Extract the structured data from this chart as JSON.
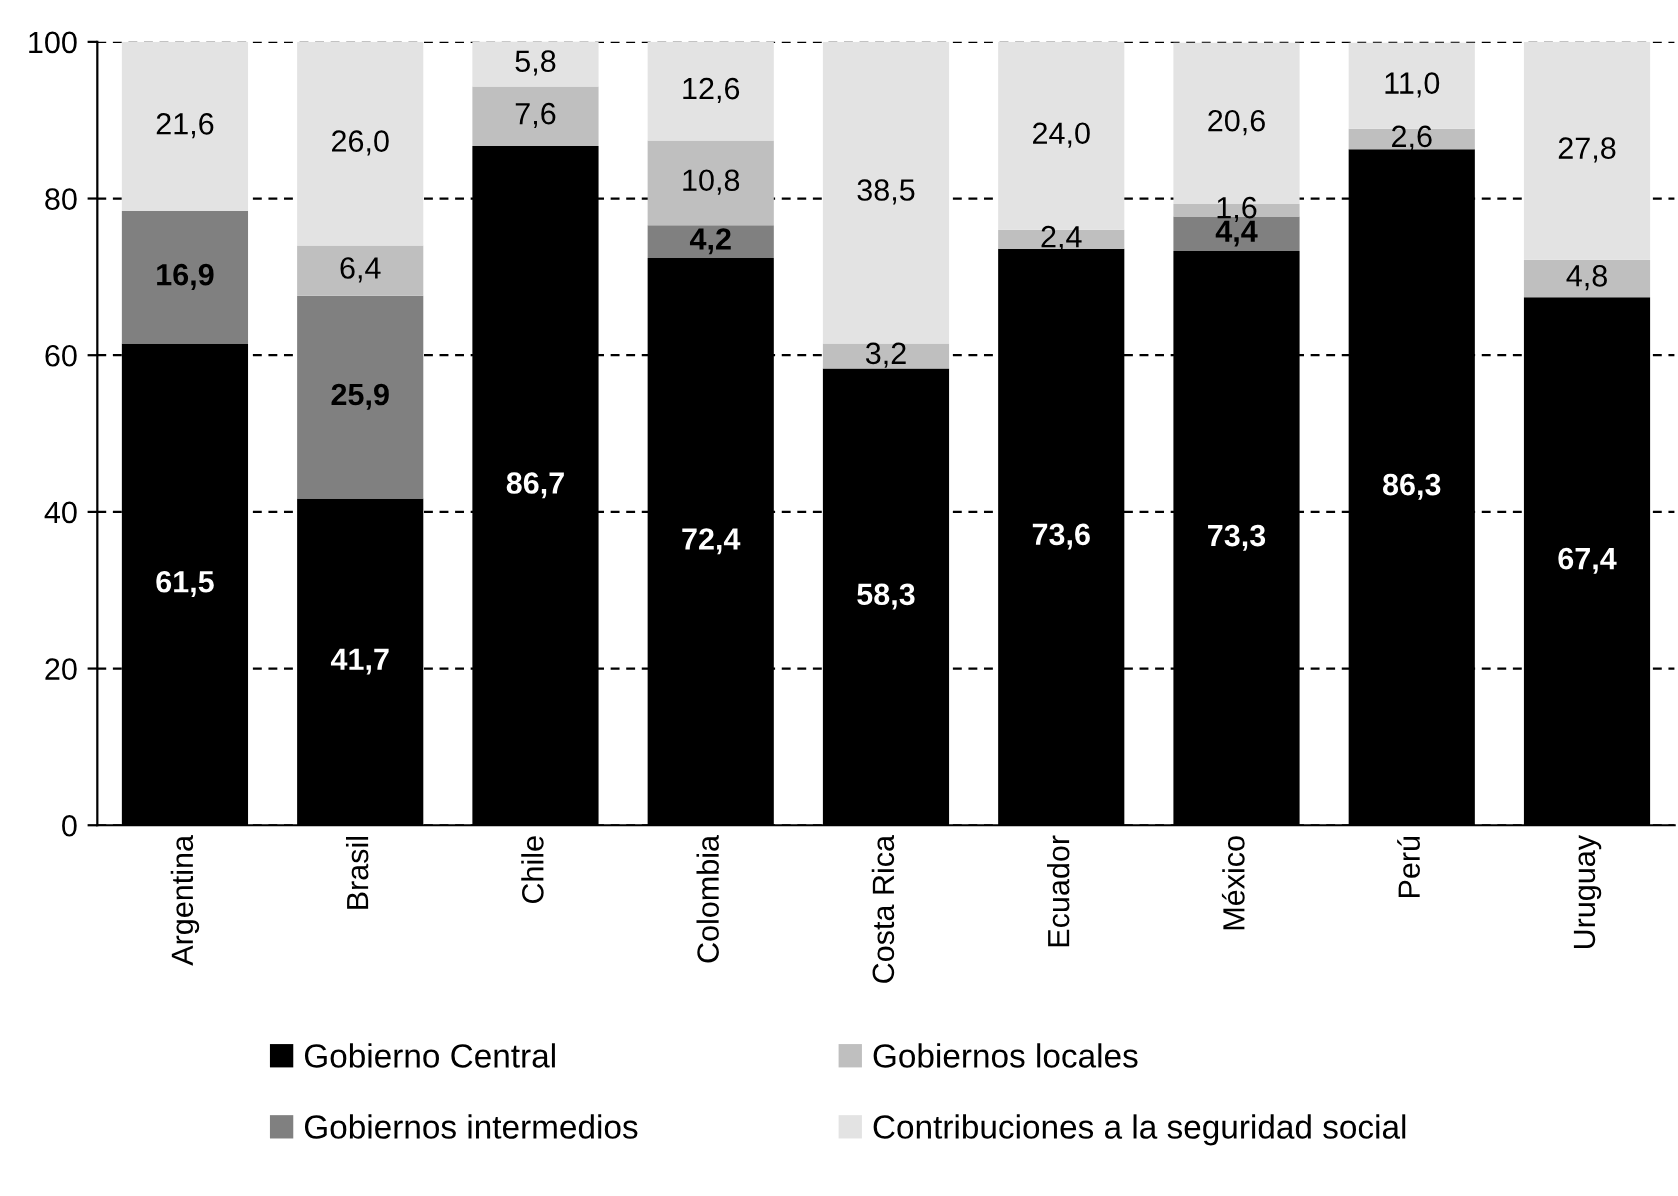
{
  "chart_data": {
    "type": "bar",
    "stacked": true,
    "categories": [
      "Argentina",
      "Brasil",
      "Chile",
      "Colombia",
      "Costa Rica",
      "Ecuador",
      "México",
      "Perú",
      "Uruguay"
    ],
    "series": [
      {
        "name": "Gobierno Central",
        "color": "#000000",
        "values": [
          61.5,
          41.7,
          86.7,
          72.4,
          58.3,
          73.6,
          73.3,
          86.3,
          67.4
        ],
        "value_labels": [
          "61,5",
          "41,7",
          "86,7",
          "72,4",
          "58,3",
          "73,6",
          "73,3",
          "86,3",
          "67,4"
        ]
      },
      {
        "name": "Gobiernos intermedios",
        "color": "#808080",
        "values": [
          16.9,
          25.9,
          null,
          4.2,
          null,
          null,
          4.4,
          null,
          null
        ],
        "value_labels": [
          "16,9",
          "25,9",
          null,
          "4,2",
          null,
          null,
          "4,4",
          null,
          null
        ]
      },
      {
        "name": "Gobiernos locales",
        "color": "#bfbfbf",
        "values": [
          null,
          6.4,
          7.6,
          10.8,
          3.2,
          2.4,
          1.6,
          2.6,
          4.8
        ],
        "value_labels": [
          null,
          "6,4",
          "7,6",
          "10,8",
          "3,2",
          "2,4",
          "1,6",
          "2,6",
          "4,8"
        ]
      },
      {
        "name": "Contribuciones a la seguridad social",
        "color": "#e3e3e3",
        "values": [
          21.6,
          26.0,
          5.8,
          12.6,
          38.5,
          24.0,
          20.6,
          11.0,
          27.8
        ],
        "value_labels": [
          "21,6",
          "26,0",
          "5,8",
          "12,6",
          "38,5",
          "24,0",
          "20,6",
          "11,0",
          "27,8"
        ]
      }
    ],
    "ylim": [
      0,
      100
    ],
    "yticks": [
      0,
      20,
      40,
      60,
      80,
      100
    ],
    "grid": "y",
    "legend": "bottom"
  }
}
